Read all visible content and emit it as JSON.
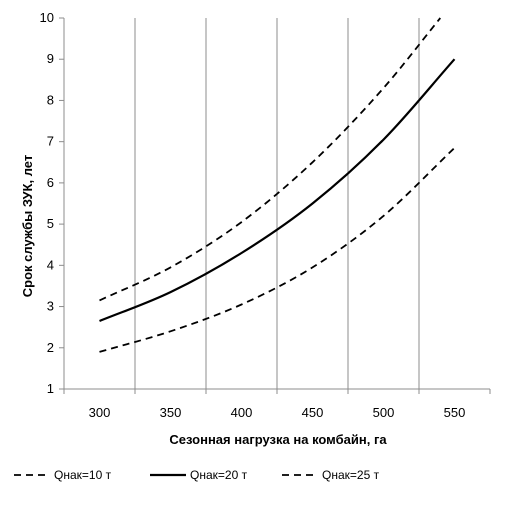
{
  "chart_data": {
    "type": "line",
    "xlabel": "Сезонная нагрузка на комбайн,  га",
    "ylabel": "Срок службы ЗУК, лет",
    "xlim": [
      275,
      575
    ],
    "ylim": [
      1,
      10
    ],
    "xticks": [
      300,
      350,
      400,
      450,
      500,
      550
    ],
    "yticks": [
      1,
      2,
      3,
      4,
      5,
      6,
      7,
      8,
      9,
      10
    ],
    "x_tick_labels": [
      "300",
      "350",
      "400",
      "450",
      "500",
      "550"
    ],
    "y_tick_labels": [
      "1",
      "2",
      "3",
      "4",
      "5",
      "6",
      "7",
      "8",
      "9",
      "10"
    ],
    "grid": "vertical",
    "legend_position": "bottom",
    "series": [
      {
        "name": "Qнак=10 т",
        "dash": "dashed",
        "x": [
          300,
          350,
          400,
          450,
          500,
          550
        ],
        "y": [
          1.9,
          2.4,
          3.05,
          3.95,
          5.2,
          6.85
        ]
      },
      {
        "name": "Qнак=20 т",
        "dash": "solid",
        "x": [
          300,
          350,
          400,
          450,
          500,
          550
        ],
        "y": [
          2.65,
          3.35,
          4.3,
          5.5,
          7.05,
          9.0
        ]
      },
      {
        "name": "Qнак=25 т",
        "dash": "dashed",
        "x": [
          300,
          350,
          400,
          450,
          500,
          540
        ],
        "y": [
          3.15,
          3.95,
          5.05,
          6.5,
          8.3,
          10.0
        ]
      }
    ],
    "colors": {
      "line": "#000000",
      "grid": "#8c8c8c",
      "frame": "#8c8c8c"
    }
  }
}
